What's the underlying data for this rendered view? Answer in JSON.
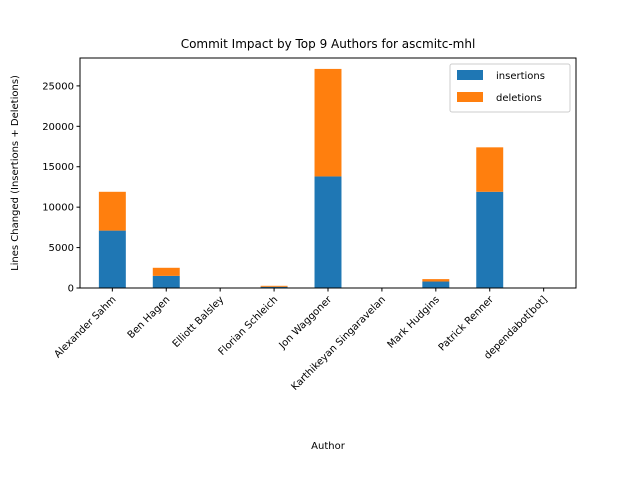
{
  "chart_data": {
    "type": "bar",
    "stacked": true,
    "title": "Commit Impact by Top 9 Authors for ascmitc-mhl",
    "xlabel": "Author",
    "ylabel": "Lines Changed (Insertions + Deletions)",
    "categories": [
      "Alexander Sahm",
      "Ben Hagen",
      "Elliott Balsley",
      "Florian Schleich",
      "Jon Waggoner",
      "Karthikeyan Singaravelan",
      "Mark Hudgins",
      "Patrick Renner",
      "dependabot[bot]"
    ],
    "series": [
      {
        "name": "insertions",
        "color": "#1f77b4",
        "values": [
          7100,
          1500,
          10,
          150,
          13800,
          5,
          800,
          11900,
          10
        ]
      },
      {
        "name": "deletions",
        "color": "#ff7f0e",
        "values": [
          4800,
          1000,
          5,
          120,
          13300,
          3,
          300,
          5500,
          5
        ]
      }
    ],
    "ylim": [
      0,
      28450
    ],
    "yticks": [
      0,
      5000,
      10000,
      15000,
      20000,
      25000
    ],
    "legend_position": "top-right",
    "grid": false
  }
}
